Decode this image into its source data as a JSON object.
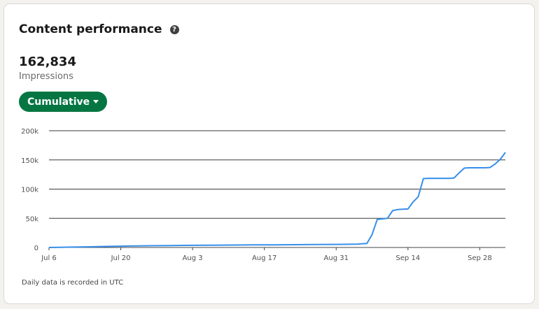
{
  "card": {
    "title": "Content performance",
    "help_icon": "question-circle-icon",
    "metric_value": "162,834",
    "metric_label": "Impressions",
    "dropdown_label": "Cumulative",
    "footnote": "Daily data is recorded in UTC"
  },
  "colors": {
    "accent": "#057642",
    "line": "#378fe9",
    "grid": "#000000"
  },
  "chart_data": {
    "type": "line",
    "title": "",
    "xlabel": "",
    "ylabel": "",
    "ylim": [
      0,
      200000
    ],
    "yticks": [
      0,
      50000,
      100000,
      150000,
      200000
    ],
    "ytick_labels": [
      "0",
      "50k",
      "100k",
      "150k",
      "200k"
    ],
    "xticks": [
      "Jul 6",
      "Jul 20",
      "Aug 3",
      "Aug 17",
      "Aug 31",
      "Sep 14",
      "Sep 28"
    ],
    "grid": true,
    "x_start": "2024-07-06",
    "series": [
      {
        "name": "",
        "x": [
          0,
          4,
          8,
          12,
          16,
          20,
          24,
          28,
          32,
          36,
          40,
          44,
          48,
          52,
          56,
          60,
          62,
          63,
          64,
          65,
          66,
          67,
          68,
          69,
          70,
          71,
          72,
          73,
          74,
          75,
          76,
          77,
          78,
          79,
          80,
          81,
          82,
          83,
          84,
          85,
          86,
          87,
          88,
          89
        ],
        "values": [
          0,
          600,
          1200,
          1900,
          2500,
          3000,
          3300,
          3700,
          4000,
          4200,
          4400,
          4600,
          4800,
          5000,
          5300,
          5600,
          7000,
          22000,
          48000,
          49000,
          50000,
          63000,
          65000,
          65500,
          66000,
          78000,
          87000,
          118000,
          118500,
          118500,
          118500,
          118500,
          118500,
          119000,
          128000,
          136000,
          136500,
          136500,
          136500,
          136500,
          137000,
          143000,
          151000,
          162834
        ]
      }
    ]
  }
}
